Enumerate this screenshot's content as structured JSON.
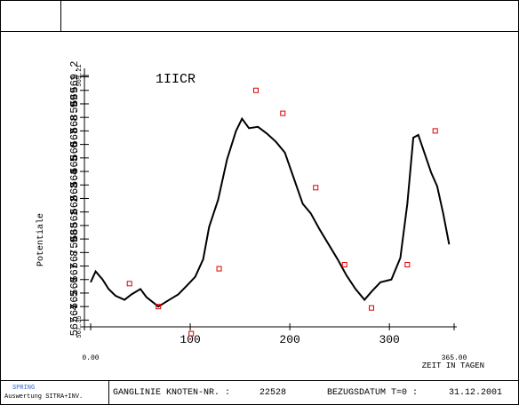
{
  "chart_data": {
    "type": "line",
    "title": "1IICR",
    "ylabel": "Potentiale",
    "xlabel": "ZEIT IN TAGEN",
    "xlim": [
      0,
      365
    ],
    "ylim": [
      567.35,
      569.21
    ],
    "xticks": [
      {
        "value": 0,
        "label": "0.00"
      },
      100,
      200,
      300,
      {
        "value": 365,
        "label": "365.00"
      }
    ],
    "yticks": [
      567.35,
      567.4,
      567.5,
      567.6,
      567.7,
      567.8,
      567.9,
      568.0,
      568.1,
      568.2,
      568.3,
      568.4,
      568.5,
      568.6,
      568.7,
      568.8,
      568.9,
      569.0,
      569.1,
      569.2,
      569.21
    ],
    "series": [
      {
        "color": "#000000",
        "style": "line",
        "x": [
          0,
          5,
          12,
          18,
          25,
          34,
          41,
          50,
          56,
          68,
          79,
          88,
          96,
          105,
          113,
          119,
          128,
          137,
          146,
          152,
          159,
          168,
          177,
          186,
          195,
          204,
          213,
          221,
          230,
          239,
          248,
          257,
          266,
          275,
          282,
          291,
          302,
          311,
          318,
          324,
          329,
          336,
          342,
          348,
          354,
          360
        ],
        "values": [
          567.68,
          567.76,
          567.7,
          567.63,
          567.58,
          567.55,
          567.59,
          567.63,
          567.57,
          567.5,
          567.55,
          567.59,
          567.65,
          567.72,
          567.85,
          568.09,
          568.29,
          568.59,
          568.8,
          568.89,
          568.82,
          568.83,
          568.78,
          568.72,
          568.64,
          568.45,
          568.26,
          568.19,
          568.07,
          567.96,
          567.85,
          567.73,
          567.63,
          567.55,
          567.61,
          567.68,
          567.7,
          567.86,
          568.26,
          568.75,
          568.77,
          568.62,
          568.49,
          568.39,
          568.19,
          567.96
        ]
      },
      {
        "color": "#dd0000",
        "style": "marker",
        "x": [
          39,
          68,
          101,
          129,
          166,
          193,
          226,
          255,
          282,
          318,
          346
        ],
        "values": [
          567.67,
          567.5,
          567.3,
          567.78,
          569.1,
          568.93,
          568.38,
          567.81,
          567.49,
          567.81,
          568.8
        ]
      }
    ]
  },
  "footer": {
    "logo": "SPRING",
    "subtitle": "Auswertung SITRA+INV.",
    "label": "GANGLINIE KNOTEN-NR. :",
    "node": "22528",
    "date_label": "BEZUGSDATUM T=0 :",
    "date": "31.12.2001"
  }
}
